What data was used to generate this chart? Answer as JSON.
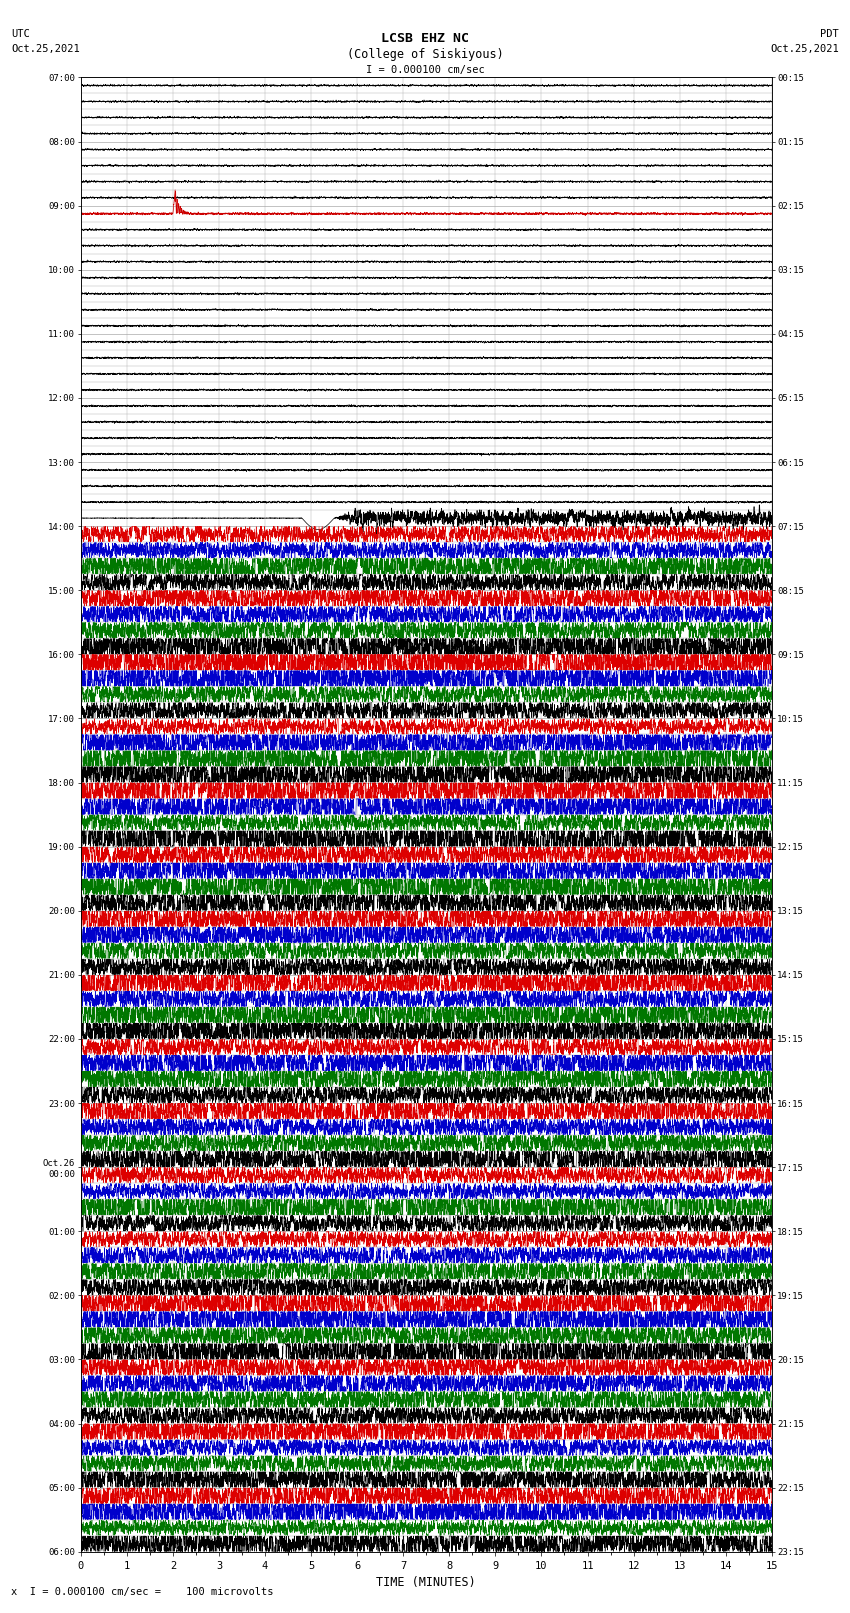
{
  "title_line1": "LCSB EHZ NC",
  "title_line2": "(College of Siskiyous)",
  "scale_label": "I = 0.000100 cm/sec",
  "footer_label": "x  I = 0.000100 cm/sec =    100 microvolts",
  "utc_label": "UTC\nOct.25,2021",
  "pdt_label": "PDT\nOct.25,2021",
  "xlabel": "TIME (MINUTES)",
  "left_times": [
    "07:00",
    "",
    "",
    "",
    "08:00",
    "",
    "",
    "",
    "09:00",
    "",
    "",
    "",
    "10:00",
    "",
    "",
    "",
    "11:00",
    "",
    "",
    "",
    "12:00",
    "",
    "",
    "",
    "13:00",
    "",
    "",
    "",
    "14:00",
    "",
    "",
    "",
    "15:00",
    "",
    "",
    "",
    "16:00",
    "",
    "",
    "",
    "17:00",
    "",
    "",
    "",
    "18:00",
    "",
    "",
    "",
    "19:00",
    "",
    "",
    "",
    "20:00",
    "",
    "",
    "",
    "21:00",
    "",
    "",
    "",
    "22:00",
    "",
    "",
    "",
    "23:00",
    "",
    "",
    "",
    "Oct.26\n00:00",
    "",
    "",
    "",
    "01:00",
    "",
    "",
    "",
    "02:00",
    "",
    "",
    "",
    "03:00",
    "",
    "",
    "",
    "04:00",
    "",
    "",
    "",
    "05:00",
    "",
    "",
    "",
    "06:00",
    "",
    ""
  ],
  "right_times": [
    "00:15",
    "",
    "",
    "",
    "01:15",
    "",
    "",
    "",
    "02:15",
    "",
    "",
    "",
    "03:15",
    "",
    "",
    "",
    "04:15",
    "",
    "",
    "",
    "05:15",
    "",
    "",
    "",
    "06:15",
    "",
    "",
    "",
    "07:15",
    "",
    "",
    "",
    "08:15",
    "",
    "",
    "",
    "09:15",
    "",
    "",
    "",
    "10:15",
    "",
    "",
    "",
    "11:15",
    "",
    "",
    "",
    "12:15",
    "",
    "",
    "",
    "13:15",
    "",
    "",
    "",
    "14:15",
    "",
    "",
    "",
    "15:15",
    "",
    "",
    "",
    "16:15",
    "",
    "",
    "",
    "17:15",
    "",
    "",
    "",
    "18:15",
    "",
    "",
    "",
    "19:15",
    "",
    "",
    "",
    "20:15",
    "",
    "",
    "",
    "21:15",
    "",
    "",
    "",
    "22:15",
    "",
    "",
    "",
    "23:15",
    "",
    ""
  ],
  "num_rows": 92,
  "quiet_rows": 28,
  "time_min": 0,
  "time_max": 15,
  "colors": [
    "red",
    "blue",
    "green",
    "black"
  ],
  "bg_color": "#ffffff",
  "grid_color": "#aaaaaa",
  "signal_amplitude_active": 0.38,
  "special_row_red_spike": 8,
  "transition_row": 27
}
